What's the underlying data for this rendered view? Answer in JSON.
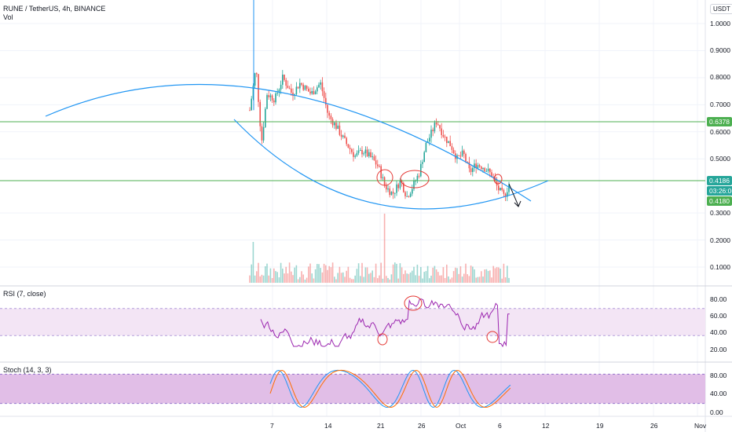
{
  "header": {
    "symbol_line": "RUNE / TetherUS, 4h, BINANCE",
    "volume_label": "Vol"
  },
  "price_axis": {
    "currency": "USDT",
    "ticks": [
      "1.0000",
      "0.9000",
      "0.8000",
      "0.7000",
      "0.6000",
      "0.5000",
      "0.3000",
      "0.2000",
      "0.1000"
    ],
    "tick_values": [
      1.0,
      0.9,
      0.8,
      0.7,
      0.6,
      0.5,
      0.3,
      0.2,
      0.1
    ],
    "tags": {
      "resistance": "0.6378",
      "last_price": "0.4186",
      "countdown": "03:26:06",
      "low_line": "0.4180"
    }
  },
  "rsi": {
    "label": "RSI (7, close)",
    "ticks": [
      "80.00",
      "60.00",
      "40.00",
      "20.00"
    ]
  },
  "stoch": {
    "label": "Stoch (14, 3, 3)",
    "ticks": [
      "80.00",
      "40.00",
      "0.00"
    ]
  },
  "time_axis": {
    "ticks": [
      "7",
      "14",
      "21",
      "26",
      "Oct",
      "6",
      "12",
      "19",
      "26",
      "Nov"
    ]
  },
  "colors": {
    "up": "#26a69a",
    "down": "#ef5350",
    "drawing": "#2196f3",
    "hline": "#4caf50",
    "rsi_line": "#9c27b0",
    "band": "#f3e5f5",
    "stoch_k": "#2196f3",
    "stoch_d": "#ff6d00",
    "countdown_bg": "#26a69a",
    "circle": "#e53935"
  }
}
